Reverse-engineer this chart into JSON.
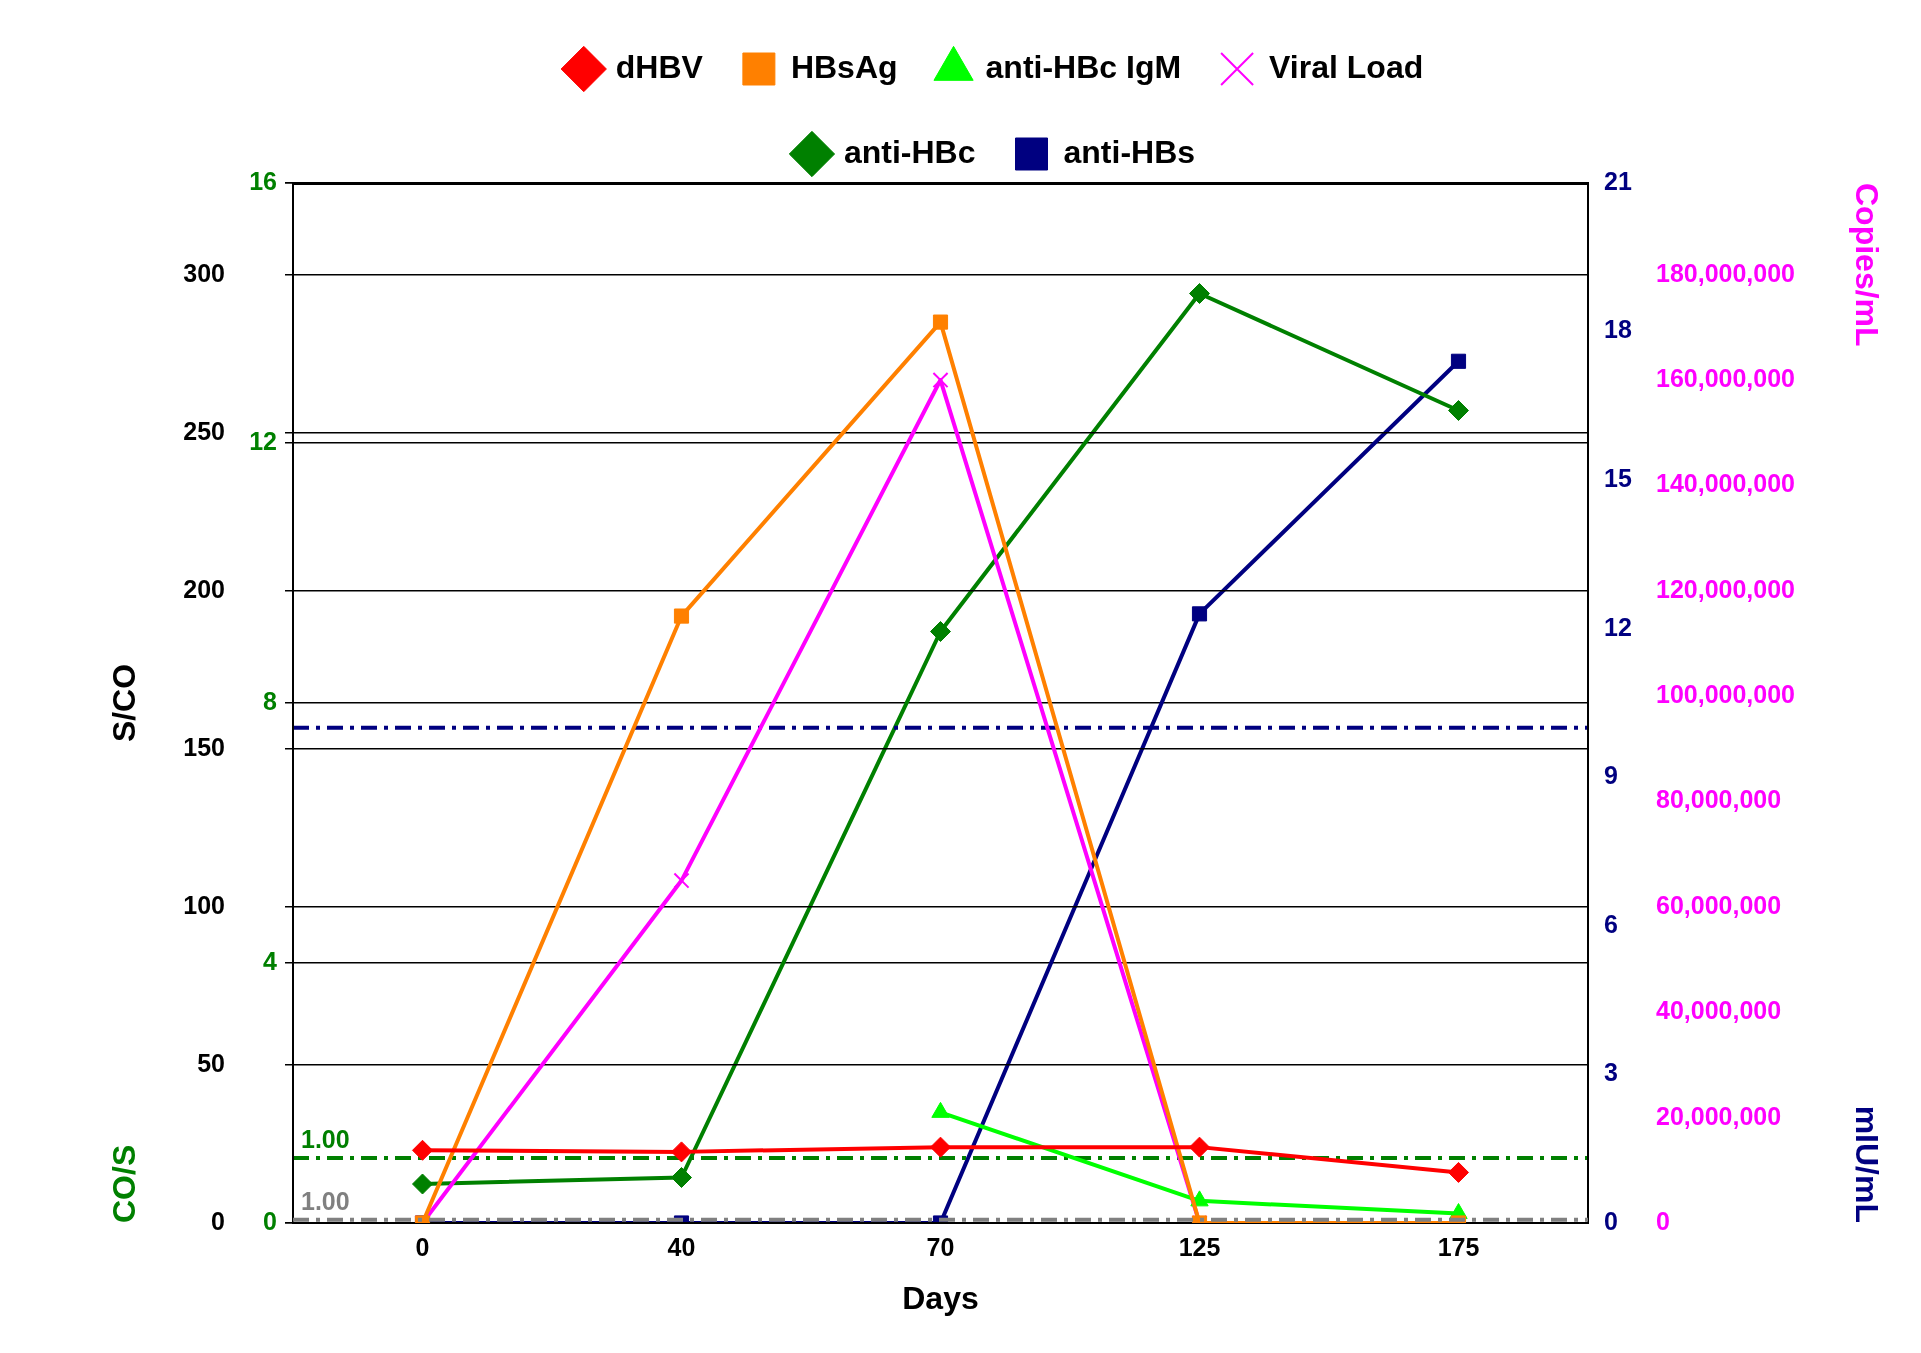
{
  "chart_data": [
    {
      "type": "line",
      "xlabel": "Days",
      "ylabel": "S/CO",
      "y2label": "Copies/mL",
      "categories": [
        "0",
        "40",
        "70",
        "125",
        "175"
      ],
      "ylim": [
        0,
        329
      ],
      "yticks": [
        0,
        50,
        100,
        150,
        200,
        250,
        300,
        {
          "value": 329,
          "label": null
        }
      ],
      "y2lim": [
        0,
        197400000
      ],
      "y2ticks": [
        {
          "value": 0,
          "label": "0"
        },
        {
          "value": 20000000,
          "label": "20,000,000"
        },
        {
          "value": 40000000,
          "label": "40,000,000"
        },
        {
          "value": 60000000,
          "label": "60,000,000"
        },
        {
          "value": 80000000,
          "label": "80,000,000"
        },
        {
          "value": 100000000,
          "label": "100,000,000"
        },
        {
          "value": 120000000,
          "label": "120,000,000"
        },
        {
          "value": 140000000,
          "label": "140,000,000"
        },
        {
          "value": 160000000,
          "label": "160,000,000"
        },
        {
          "value": 180000000,
          "label": "180,000,000"
        },
        {
          "value": 197400000,
          "label": null
        }
      ],
      "grid": "y",
      "legend": "top",
      "series": [
        {
          "name": "dHBV",
          "color": "#ff0000",
          "marker": "diamond",
          "values": [
            23,
            22.5,
            24,
            24,
            16
          ]
        },
        {
          "name": "HBsAg",
          "color": "#ff8000",
          "marker": "square",
          "values": [
            0,
            192,
            285,
            0,
            0
          ]
        },
        {
          "name": "anti-HBc IgM",
          "color": "#00ff00",
          "marker": "triangle",
          "values": [
            null,
            null,
            35,
            7,
            3
          ]
        },
        {
          "name": "Viral Load",
          "color": "#ff00ff",
          "marker": "cross",
          "axis": "y2",
          "values": [
            0,
            65000000,
            160000000,
            0,
            0
          ]
        }
      ],
      "ref_lines": [
        {
          "axis": "y",
          "value": 1,
          "label": "1.00",
          "color": "#808080",
          "line_style": "dashed"
        }
      ]
    },
    {
      "type": "line",
      "ylabel": "CO/S",
      "y2label": "mIU/mL",
      "categories": [
        "0",
        "40",
        "70",
        "125",
        "175"
      ],
      "tick_labels": "y",
      "ylim": [
        0,
        16
      ],
      "yticks": [
        0,
        4,
        8,
        12,
        16
      ],
      "y2lim": [
        0,
        21
      ],
      "y2ticks": [
        0,
        3,
        6,
        9,
        12,
        15,
        18,
        21
      ],
      "grid": "y",
      "legend": "top",
      "series": [
        {
          "name": "anti-HBc",
          "color": "#008000",
          "marker": "diamond",
          "values": [
            0.6,
            0.7,
            9.1,
            14.3,
            12.5
          ]
        },
        {
          "name": "anti-HBs",
          "color": "#000080",
          "marker": "square",
          "axis": "y2",
          "values": [
            0,
            0,
            0,
            12.3,
            17.4
          ]
        }
      ],
      "ref_lines": [
        {
          "axis": "y2",
          "value": 10,
          "color": "#000080",
          "line_style": "dashed"
        },
        {
          "axis": "y",
          "value": 1,
          "label": "1.00",
          "color": "#008000",
          "line_style": "dashed"
        }
      ]
    }
  ]
}
